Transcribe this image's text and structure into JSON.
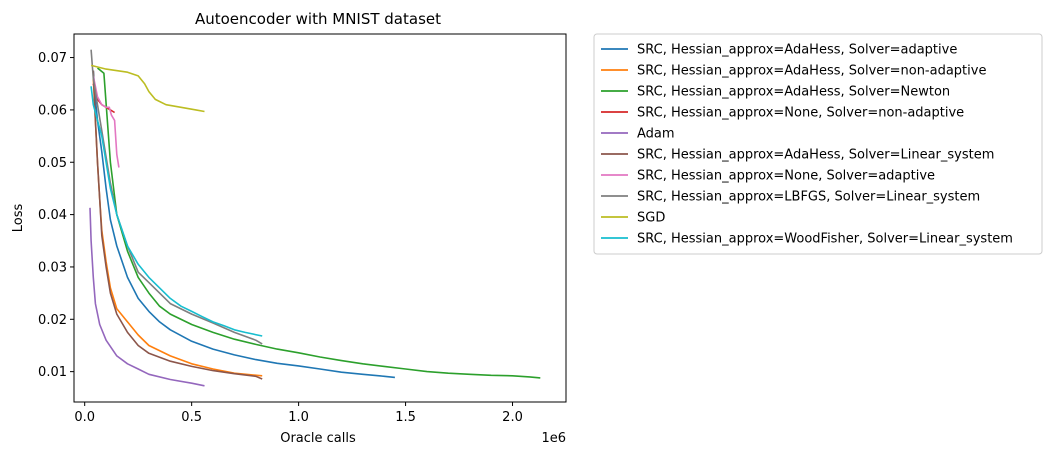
{
  "chart_data": {
    "type": "line",
    "title": "Autoencoder with MNIST dataset",
    "xlabel": "Oracle calls",
    "ylabel": "Loss",
    "x_offset_text": "1e6",
    "xlim": [
      -50000,
      2250000
    ],
    "ylim": [
      0.0042,
      0.0745
    ],
    "x_ticks": [
      0,
      500000,
      1000000,
      1500000,
      2000000
    ],
    "x_tick_labels": [
      "0.0",
      "0.5",
      "1.0",
      "1.5",
      "2.0"
    ],
    "y_ticks": [
      0.01,
      0.02,
      0.03,
      0.04,
      0.05,
      0.06,
      0.07
    ],
    "y_tick_labels": [
      "0.01",
      "0.02",
      "0.03",
      "0.04",
      "0.05",
      "0.06",
      "0.07"
    ],
    "grid": false,
    "legend_position": "outside-right-top",
    "series": [
      {
        "name": "SRC, Hessian_approx=AdaHess, Solver=adaptive",
        "color": "#1f77b4",
        "points": [
          [
            40000,
            0.0675
          ],
          [
            50000,
            0.062
          ],
          [
            60000,
            0.058
          ],
          [
            80000,
            0.052
          ],
          [
            100000,
            0.045
          ],
          [
            120000,
            0.039
          ],
          [
            150000,
            0.034
          ],
          [
            200000,
            0.028
          ],
          [
            250000,
            0.024
          ],
          [
            300000,
            0.0215
          ],
          [
            350000,
            0.0195
          ],
          [
            400000,
            0.018
          ],
          [
            500000,
            0.0158
          ],
          [
            600000,
            0.0143
          ],
          [
            700000,
            0.0132
          ],
          [
            800000,
            0.0123
          ],
          [
            900000,
            0.0116
          ],
          [
            1000000,
            0.0111
          ],
          [
            1100000,
            0.0105
          ],
          [
            1200000,
            0.0099
          ],
          [
            1300000,
            0.0095
          ],
          [
            1400000,
            0.0091
          ],
          [
            1450000,
            0.0089
          ]
        ]
      },
      {
        "name": "SRC, Hessian_approx=AdaHess, Solver=non-adaptive",
        "color": "#ff7f0e",
        "points": [
          [
            40000,
            0.066
          ],
          [
            50000,
            0.058
          ],
          [
            60000,
            0.05
          ],
          [
            70000,
            0.043
          ],
          [
            80000,
            0.037
          ],
          [
            100000,
            0.031
          ],
          [
            120000,
            0.026
          ],
          [
            150000,
            0.022
          ],
          [
            200000,
            0.0195
          ],
          [
            250000,
            0.017
          ],
          [
            300000,
            0.015
          ],
          [
            400000,
            0.013
          ],
          [
            500000,
            0.0115
          ],
          [
            600000,
            0.0105
          ],
          [
            700000,
            0.0097
          ],
          [
            830000,
            0.0092
          ]
        ]
      },
      {
        "name": "SRC, Hessian_approx=AdaHess, Solver=Newton",
        "color": "#2ca02c",
        "points": [
          [
            60000,
            0.068
          ],
          [
            90000,
            0.067
          ],
          [
            120000,
            0.05
          ],
          [
            150000,
            0.04
          ],
          [
            200000,
            0.033
          ],
          [
            250000,
            0.028
          ],
          [
            300000,
            0.025
          ],
          [
            350000,
            0.0225
          ],
          [
            400000,
            0.021
          ],
          [
            500000,
            0.019
          ],
          [
            600000,
            0.0175
          ],
          [
            700000,
            0.0162
          ],
          [
            800000,
            0.0152
          ],
          [
            900000,
            0.0143
          ],
          [
            1000000,
            0.0136
          ],
          [
            1100000,
            0.0128
          ],
          [
            1200000,
            0.0121
          ],
          [
            1300000,
            0.0115
          ],
          [
            1400000,
            0.011
          ],
          [
            1500000,
            0.0105
          ],
          [
            1600000,
            0.01
          ],
          [
            1700000,
            0.0097
          ],
          [
            1800000,
            0.0095
          ],
          [
            1900000,
            0.0093
          ],
          [
            2000000,
            0.0092
          ],
          [
            2080000,
            0.009
          ],
          [
            2130000,
            0.0088
          ]
        ]
      },
      {
        "name": "SRC, Hessian_approx=None, Solver=non-adaptive",
        "color": "#d62728",
        "points": [
          [
            40000,
            0.065
          ],
          [
            60000,
            0.062
          ],
          [
            80000,
            0.061
          ],
          [
            100000,
            0.0605
          ],
          [
            120000,
            0.06
          ],
          [
            140000,
            0.0595
          ]
        ]
      },
      {
        "name": "Adam",
        "color": "#9467bd",
        "points": [
          [
            25000,
            0.0413
          ],
          [
            30000,
            0.035
          ],
          [
            40000,
            0.028
          ],
          [
            50000,
            0.023
          ],
          [
            70000,
            0.019
          ],
          [
            100000,
            0.016
          ],
          [
            150000,
            0.013
          ],
          [
            200000,
            0.0115
          ],
          [
            250000,
            0.0105
          ],
          [
            300000,
            0.0095
          ],
          [
            400000,
            0.0085
          ],
          [
            500000,
            0.0078
          ],
          [
            560000,
            0.0073
          ]
        ]
      },
      {
        "name": "SRC, Hessian_approx=AdaHess, Solver=Linear_system",
        "color": "#8c564b",
        "points": [
          [
            40000,
            0.0675
          ],
          [
            50000,
            0.058
          ],
          [
            60000,
            0.05
          ],
          [
            70000,
            0.043
          ],
          [
            80000,
            0.036
          ],
          [
            100000,
            0.03
          ],
          [
            120000,
            0.025
          ],
          [
            150000,
            0.021
          ],
          [
            200000,
            0.0175
          ],
          [
            250000,
            0.015
          ],
          [
            300000,
            0.0135
          ],
          [
            400000,
            0.012
          ],
          [
            500000,
            0.011
          ],
          [
            600000,
            0.0102
          ],
          [
            700000,
            0.0096
          ],
          [
            800000,
            0.0091
          ],
          [
            830000,
            0.0086
          ]
        ]
      },
      {
        "name": "SRC, Hessian_approx=None, Solver=adaptive",
        "color": "#e377c2",
        "points": [
          [
            40000,
            0.0665
          ],
          [
            60000,
            0.0625
          ],
          [
            80000,
            0.061
          ],
          [
            100000,
            0.0605
          ],
          [
            115000,
            0.0605
          ],
          [
            125000,
            0.059
          ],
          [
            140000,
            0.058
          ],
          [
            150000,
            0.0515
          ],
          [
            160000,
            0.049
          ]
        ]
      },
      {
        "name": "SRC, Hessian_approx=LBFGS, Solver=Linear_system",
        "color": "#7f7f7f",
        "points": [
          [
            30000,
            0.0715
          ],
          [
            40000,
            0.066
          ],
          [
            60000,
            0.061
          ],
          [
            80000,
            0.056
          ],
          [
            100000,
            0.051
          ],
          [
            120000,
            0.046
          ],
          [
            150000,
            0.04
          ],
          [
            200000,
            0.034
          ],
          [
            250000,
            0.029
          ],
          [
            300000,
            0.027
          ],
          [
            350000,
            0.025
          ],
          [
            400000,
            0.023
          ],
          [
            500000,
            0.021
          ],
          [
            600000,
            0.0193
          ],
          [
            700000,
            0.0175
          ],
          [
            800000,
            0.016
          ],
          [
            830000,
            0.0153
          ]
        ]
      },
      {
        "name": "SGD",
        "color": "#bcbd22",
        "points": [
          [
            30000,
            0.0685
          ],
          [
            100000,
            0.0678
          ],
          [
            200000,
            0.0672
          ],
          [
            250000,
            0.0665
          ],
          [
            280000,
            0.065
          ],
          [
            300000,
            0.0635
          ],
          [
            330000,
            0.062
          ],
          [
            380000,
            0.061
          ],
          [
            450000,
            0.0605
          ],
          [
            520000,
            0.06
          ],
          [
            560000,
            0.0597
          ]
        ]
      },
      {
        "name": "SRC, Hessian_approx=WoodFisher, Solver=Linear_system",
        "color": "#17becf",
        "points": [
          [
            30000,
            0.0645
          ],
          [
            40000,
            0.061
          ],
          [
            60000,
            0.058
          ],
          [
            80000,
            0.055
          ],
          [
            100000,
            0.05
          ],
          [
            120000,
            0.045
          ],
          [
            150000,
            0.04
          ],
          [
            200000,
            0.034
          ],
          [
            250000,
            0.0305
          ],
          [
            300000,
            0.028
          ],
          [
            350000,
            0.026
          ],
          [
            400000,
            0.024
          ],
          [
            450000,
            0.0225
          ],
          [
            500000,
            0.0215
          ],
          [
            550000,
            0.0205
          ],
          [
            600000,
            0.0195
          ],
          [
            650000,
            0.0188
          ],
          [
            700000,
            0.018
          ],
          [
            750000,
            0.0175
          ],
          [
            830000,
            0.0168
          ]
        ]
      }
    ]
  }
}
